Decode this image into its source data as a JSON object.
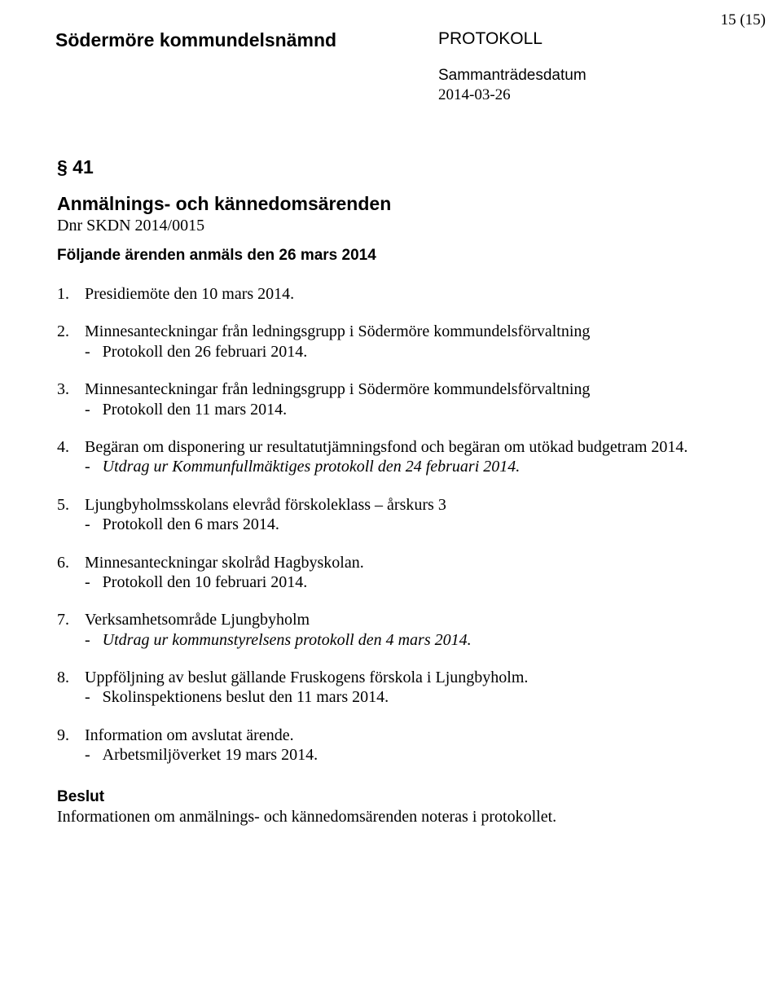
{
  "page_number": "15 (15)",
  "header": {
    "authority": "Södermöre kommundelsnämnd",
    "doc_type": "PROTOKOLL",
    "meeting_date_label": "Sammanträdesdatum",
    "meeting_date": "2014-03-26"
  },
  "section": {
    "number": "§ 41",
    "title": "Anmälnings- och kännedomsärenden",
    "dnr": "Dnr SKDN 2014/0015",
    "subheading": "Följande ärenden anmäls den 26 mars 2014"
  },
  "items": [
    {
      "line1": "Presidiemöte den 10 mars 2014.",
      "subs": []
    },
    {
      "line1": "Minnesanteckningar från ledningsgrupp i Södermöre kommundelsförvaltning",
      "subs": [
        {
          "text": "Protokoll den 26 februari 2014.",
          "italic": false
        }
      ]
    },
    {
      "line1": "Minnesanteckningar från ledningsgrupp i Södermöre kommundelsförvaltning",
      "subs": [
        {
          "text": "Protokoll den 11 mars 2014.",
          "italic": false
        }
      ]
    },
    {
      "line1": "Begäran om disponering ur resultatutjämningsfond och begäran om utökad budgetram 2014.",
      "subs": [
        {
          "text": "Utdrag ur Kommunfullmäktiges protokoll den 24 februari 2014.",
          "italic": true
        }
      ]
    },
    {
      "line1": "Ljungbyholmsskolans elevråd förskoleklass – årskurs 3",
      "subs": [
        {
          "text": "Protokoll den 6 mars 2014.",
          "italic": false
        }
      ]
    },
    {
      "line1": "Minnesanteckningar skolråd Hagbyskolan.",
      "subs": [
        {
          "text": "Protokoll den 10 februari 2014.",
          "italic": false
        }
      ]
    },
    {
      "line1": "Verksamhetsområde Ljungbyholm",
      "subs": [
        {
          "text": "Utdrag ur kommunstyrelsens protokoll den 4 mars 2014.",
          "italic": true
        }
      ]
    },
    {
      "line1": "Uppföljning av beslut gällande Fruskogens förskola i Ljungbyholm.",
      "subs": [
        {
          "text": "Skolinspektionens beslut den 11 mars 2014.",
          "italic": false
        }
      ]
    },
    {
      "line1": "Information om avslutat ärende.",
      "subs": [
        {
          "text": "Arbetsmiljöverket 19 mars 2014.",
          "italic": false
        }
      ]
    }
  ],
  "decision": {
    "heading": "Beslut",
    "text": "Informationen om anmälnings- och kännedomsärenden noteras i protokollet."
  }
}
